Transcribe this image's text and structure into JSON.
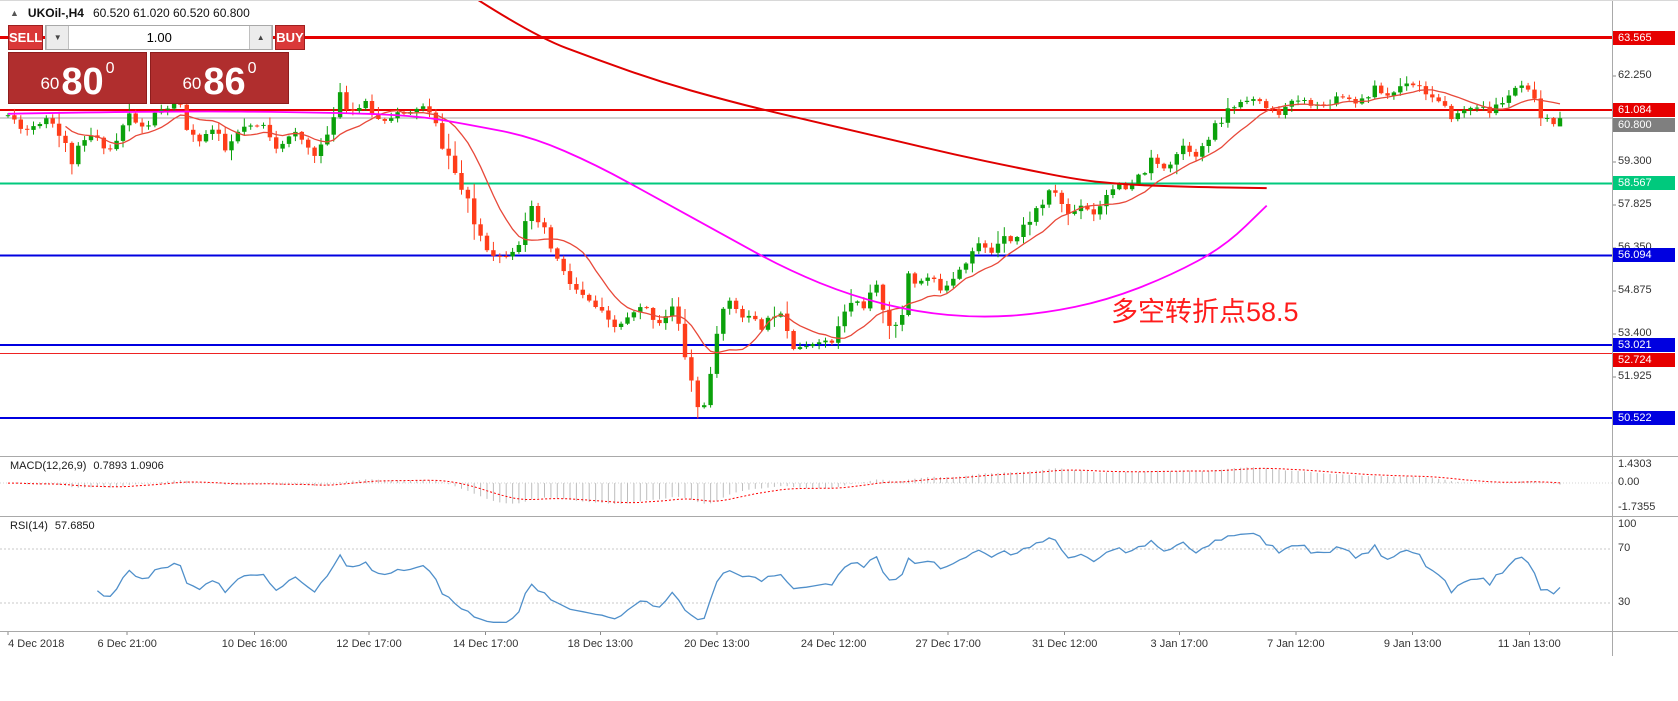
{
  "quote_bar": {
    "collapse_icon": "▲",
    "symbol": "UKOil-,H4",
    "ohlc": "60.520 61.020 60.520 60.800"
  },
  "trade_panel": {
    "sell_label": "SELL",
    "buy_label": "BUY",
    "volume": "1.00",
    "volume_down_icon": "▼",
    "volume_up_icon": "▲",
    "sell_price": {
      "small": "60",
      "big": "80",
      "sup": "0"
    },
    "buy_price": {
      "small": "60",
      "big": "86",
      "sup": "0"
    },
    "button_color": "#da3838",
    "box_color": "#b02e2e"
  },
  "annotation": {
    "text": "多空转折点58.5",
    "color": "#ff1c1c"
  },
  "indicators": {
    "macd": {
      "label": "MACD(12,26,9)",
      "values": "0.7893 1.0906"
    },
    "rsi": {
      "label": "RSI(14)",
      "values": "57.6850"
    }
  },
  "chart_data": {
    "type": "candlestick",
    "title": "UKOil-,H4",
    "price_min": 49.21,
    "price_max": 64.82,
    "candles": {
      "count": 244,
      "seed": 11,
      "up_color": "#0ba10b",
      "down_color": "#ff3d1a",
      "trend_keyframes": [
        [
          0,
          60.9
        ],
        [
          0.012,
          60.4
        ],
        [
          0.027,
          60.9
        ],
        [
          0.041,
          59.35
        ],
        [
          0.053,
          60.2
        ],
        [
          0.067,
          59.7
        ],
        [
          0.078,
          60.9
        ],
        [
          0.087,
          60.4
        ],
        [
          0.097,
          61.0
        ],
        [
          0.11,
          61.35
        ],
        [
          0.119,
          59.95
        ],
        [
          0.132,
          60.4
        ],
        [
          0.14,
          59.65
        ],
        [
          0.151,
          60.45
        ],
        [
          0.165,
          60.55
        ],
        [
          0.174,
          59.85
        ],
        [
          0.185,
          60.25
        ],
        [
          0.197,
          59.6
        ],
        [
          0.206,
          60.1
        ],
        [
          0.213,
          61.85
        ],
        [
          0.221,
          61.05
        ],
        [
          0.231,
          61.3
        ],
        [
          0.24,
          60.65
        ],
        [
          0.25,
          61.0
        ],
        [
          0.257,
          60.85
        ],
        [
          0.266,
          61.3
        ],
        [
          0.274,
          60.7
        ],
        [
          0.283,
          59.6
        ],
        [
          0.291,
          58.5
        ],
        [
          0.299,
          57.3
        ],
        [
          0.31,
          56.35
        ],
        [
          0.318,
          56.0
        ],
        [
          0.329,
          56.55
        ],
        [
          0.338,
          57.55
        ],
        [
          0.348,
          56.6
        ],
        [
          0.358,
          55.4
        ],
        [
          0.369,
          54.7
        ],
        [
          0.379,
          54.3
        ],
        [
          0.389,
          53.55
        ],
        [
          0.399,
          53.9
        ],
        [
          0.41,
          54.35
        ],
        [
          0.419,
          53.8
        ],
        [
          0.428,
          54.3
        ],
        [
          0.437,
          52.6
        ],
        [
          0.444,
          50.85
        ],
        [
          0.451,
          51.1
        ],
        [
          0.46,
          54.6
        ],
        [
          0.469,
          54.3
        ],
        [
          0.478,
          53.9
        ],
        [
          0.487,
          53.6
        ],
        [
          0.496,
          54.4
        ],
        [
          0.506,
          53.2
        ],
        [
          0.513,
          52.85
        ],
        [
          0.522,
          53.25
        ],
        [
          0.53,
          53.0
        ],
        [
          0.544,
          54.6
        ],
        [
          0.552,
          54.35
        ],
        [
          0.559,
          55.0
        ],
        [
          0.568,
          53.9
        ],
        [
          0.574,
          53.3
        ],
        [
          0.58,
          55.6
        ],
        [
          0.586,
          55.1
        ],
        [
          0.592,
          55.35
        ],
        [
          0.602,
          54.95
        ],
        [
          0.616,
          55.9
        ],
        [
          0.625,
          56.45
        ],
        [
          0.634,
          56.2
        ],
        [
          0.641,
          57.0
        ],
        [
          0.648,
          56.55
        ],
        [
          0.66,
          57.5
        ],
        [
          0.674,
          58.35
        ],
        [
          0.684,
          57.4
        ],
        [
          0.692,
          57.95
        ],
        [
          0.699,
          57.5
        ],
        [
          0.712,
          58.55
        ],
        [
          0.722,
          58.3
        ],
        [
          0.736,
          59.3
        ],
        [
          0.746,
          59.1
        ],
        [
          0.756,
          59.9
        ],
        [
          0.767,
          59.55
        ],
        [
          0.777,
          60.35
        ],
        [
          0.787,
          61.1
        ],
        [
          0.799,
          61.55
        ],
        [
          0.808,
          61.25
        ],
        [
          0.818,
          60.95
        ],
        [
          0.832,
          61.45
        ],
        [
          0.846,
          61.2
        ],
        [
          0.858,
          61.6
        ],
        [
          0.87,
          61.35
        ],
        [
          0.881,
          61.8
        ],
        [
          0.89,
          61.55
        ],
        [
          0.901,
          62.1
        ],
        [
          0.911,
          61.85
        ],
        [
          0.921,
          61.3
        ],
        [
          0.931,
          60.85
        ],
        [
          0.945,
          61.25
        ],
        [
          0.955,
          61.0
        ],
        [
          0.966,
          61.55
        ],
        [
          0.976,
          61.9
        ],
        [
          0.986,
          61.0
        ],
        [
          0.993,
          60.55
        ],
        [
          1,
          60.8
        ]
      ],
      "last_candle": {
        "o": 60.52,
        "h": 61.02,
        "l": 60.52,
        "c": 60.8
      }
    },
    "levels": [
      {
        "v": 63.565,
        "color": "#e60000",
        "w": 3
      },
      {
        "v": 61.084,
        "color": "#e60000",
        "w": 2
      },
      {
        "v": 60.8,
        "color": "#a6a6a6",
        "w": 1
      },
      {
        "v": 58.567,
        "color": "#00c97d",
        "w": 2
      },
      {
        "v": 56.094,
        "color": "#0000e0",
        "w": 2
      },
      {
        "v": 53.021,
        "color": "#0000e0",
        "w": 2
      },
      {
        "v": 52.724,
        "color": "#ee2222",
        "w": 1
      },
      {
        "v": 50.522,
        "color": "#0000e0",
        "w": 2
      }
    ],
    "price_ticks": [
      {
        "label": "62.250",
        "v": 62.25
      },
      {
        "label": "59.300",
        "v": 59.3
      },
      {
        "label": "57.825",
        "v": 57.825
      },
      {
        "label": "56.350",
        "v": 56.35
      },
      {
        "label": "54.875",
        "v": 54.875
      },
      {
        "label": "53.400",
        "v": 53.4
      },
      {
        "label": "51.925",
        "v": 51.925
      }
    ],
    "price_tags": [
      {
        "label": "63.565",
        "v": 63.565,
        "bg": "#e60000"
      },
      {
        "label": "61.084",
        "v": 61.084,
        "bg": "#e60000"
      },
      {
        "label": "60.800",
        "v": 60.8,
        "bg": "#7f7f7f"
      },
      {
        "label": "58.567",
        "v": 58.567,
        "bg": "#00c97d"
      },
      {
        "label": "56.094",
        "v": 56.094,
        "bg": "#0000e0"
      },
      {
        "label": "53.021",
        "v": 53.021,
        "bg": "#0000e0"
      },
      {
        "label": "52.724",
        "v": 52.724,
        "bg": "#e60000"
      },
      {
        "label": "50.522",
        "v": 50.522,
        "bg": "#0000e0"
      }
    ],
    "ma_fast": {
      "period": 10,
      "color": "#e8493a",
      "w": 1.3
    },
    "ma_mid": {
      "color": "#ff00ff",
      "w": 1.8,
      "path": [
        [
          0,
          60.95
        ],
        [
          0.1,
          61.05
        ],
        [
          0.2,
          61.0
        ],
        [
          0.262,
          60.9
        ],
        [
          0.3,
          60.55
        ],
        [
          0.338,
          60.15
        ],
        [
          0.379,
          59.2
        ],
        [
          0.42,
          58.0
        ],
        [
          0.461,
          56.8
        ],
        [
          0.502,
          55.6
        ],
        [
          0.544,
          54.7
        ],
        [
          0.585,
          54.15
        ],
        [
          0.626,
          53.95
        ],
        [
          0.667,
          54.1
        ],
        [
          0.708,
          54.55
        ],
        [
          0.749,
          55.4
        ],
        [
          0.784,
          56.4
        ],
        [
          0.811,
          57.8
        ]
      ]
    },
    "ma_slow": {
      "color": "#e00000",
      "w": 2,
      "path": [
        [
          0.303,
          64.85
        ],
        [
          0.34,
          63.6
        ],
        [
          0.38,
          62.8
        ],
        [
          0.42,
          62.05
        ],
        [
          0.46,
          61.45
        ],
        [
          0.49,
          61.05
        ],
        [
          0.53,
          60.55
        ],
        [
          0.57,
          60.05
        ],
        [
          0.61,
          59.55
        ],
        [
          0.65,
          59.1
        ],
        [
          0.69,
          58.68
        ],
        [
          0.72,
          58.52
        ],
        [
          0.76,
          58.44
        ],
        [
          0.811,
          58.4
        ]
      ]
    },
    "macd": {
      "vmax": 1.55,
      "vmin": -1.9,
      "hist_color": "#bdbdbd",
      "signal_color": "#ff0000",
      "axis": [
        "1.4303",
        "0.00",
        "-1.7355"
      ]
    },
    "rsi": {
      "color": "#4f8fca",
      "dotted_levels": [
        70,
        30
      ],
      "axis_labels": [
        {
          "label": "100",
          "v": 100
        },
        {
          "label": "70",
          "v": 70
        },
        {
          "label": "30",
          "v": 30
        }
      ]
    },
    "time_axis": [
      {
        "label": "4 Dec 2018",
        "f": 0.005,
        "align": "left"
      },
      {
        "label": "6 Dec 21:00",
        "f": 0.0789
      },
      {
        "label": "10 Dec 16:00",
        "f": 0.1579
      },
      {
        "label": "12 Dec 17:00",
        "f": 0.2289
      },
      {
        "label": "14 Dec 17:00",
        "f": 0.3013
      },
      {
        "label": "18 Dec 13:00",
        "f": 0.3724
      },
      {
        "label": "20 Dec 13:00",
        "f": 0.4447
      },
      {
        "label": "24 Dec 12:00",
        "f": 0.5171
      },
      {
        "label": "27 Dec 17:00",
        "f": 0.5882
      },
      {
        "label": "31 Dec 12:00",
        "f": 0.6605
      },
      {
        "label": "3 Jan 17:00",
        "f": 0.7316
      },
      {
        "label": "7 Jan 12:00",
        "f": 0.8039
      },
      {
        "label": "9 Jan 13:00",
        "f": 0.8763
      },
      {
        "label": "11 Jan 13:00",
        "f": 0.9487
      }
    ]
  }
}
